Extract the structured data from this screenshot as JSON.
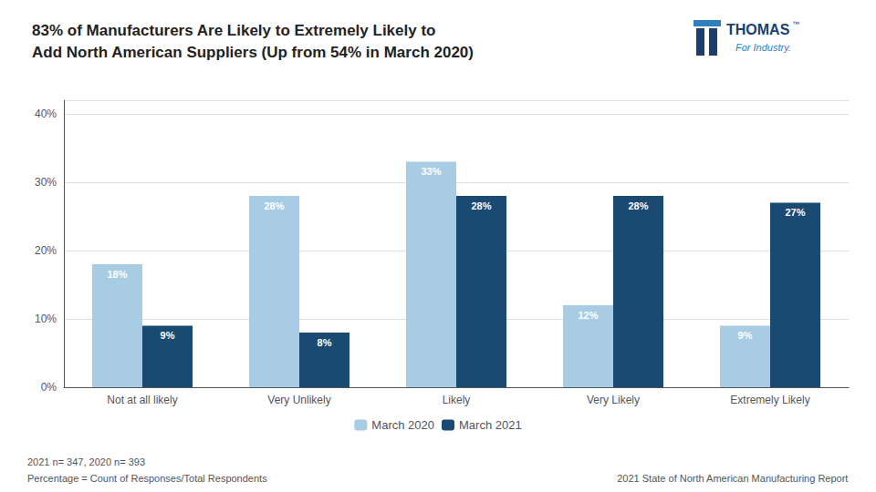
{
  "chart_data": {
    "type": "bar",
    "title": "83% of Manufacturers Are Likely to Extremely Likely to\nAdd North American Suppliers (Up from 54% in March 2020)",
    "categories": [
      "Not at all likely",
      "Very Unlikely",
      "Likely",
      "Very Likely",
      "Extremely Likely"
    ],
    "series": [
      {
        "name": "March 2020",
        "color": "#a8cce4",
        "values": [
          18,
          28,
          33,
          12,
          9
        ],
        "value_labels": [
          "18%",
          "28%",
          "33%",
          "12%",
          "9%"
        ]
      },
      {
        "name": "March 2021",
        "color": "#1a4971",
        "values": [
          9,
          8,
          28,
          28,
          27
        ],
        "value_labels": [
          "9%",
          "8%",
          "28%",
          "28%",
          "27%"
        ]
      }
    ],
    "ylim": [
      0,
      42
    ],
    "yticks": [
      {
        "value": 0,
        "label": "0%"
      },
      {
        "value": 10,
        "label": "10%"
      },
      {
        "value": 20,
        "label": "20%"
      },
      {
        "value": 30,
        "label": "30%"
      },
      {
        "value": 40,
        "label": "40%"
      }
    ],
    "grid": true,
    "legend": "bottom",
    "data_labels": true,
    "annotations": [
      {
        "text": "2021 n= 347, 2020 n= 393",
        "color": "#555555"
      },
      {
        "text": "Percentage = Count of Responses/Total Respondents",
        "color": "#555555"
      },
      {
        "text": "2021 State of North American Manufacturing Report",
        "color": "#555555"
      },
      {
        "text": "THOMAS",
        "color": "#1a3f6f"
      },
      {
        "text": "™",
        "color": "#1a3f6f"
      },
      {
        "text": "For Industry.",
        "color": "#2e7fc0"
      }
    ]
  }
}
